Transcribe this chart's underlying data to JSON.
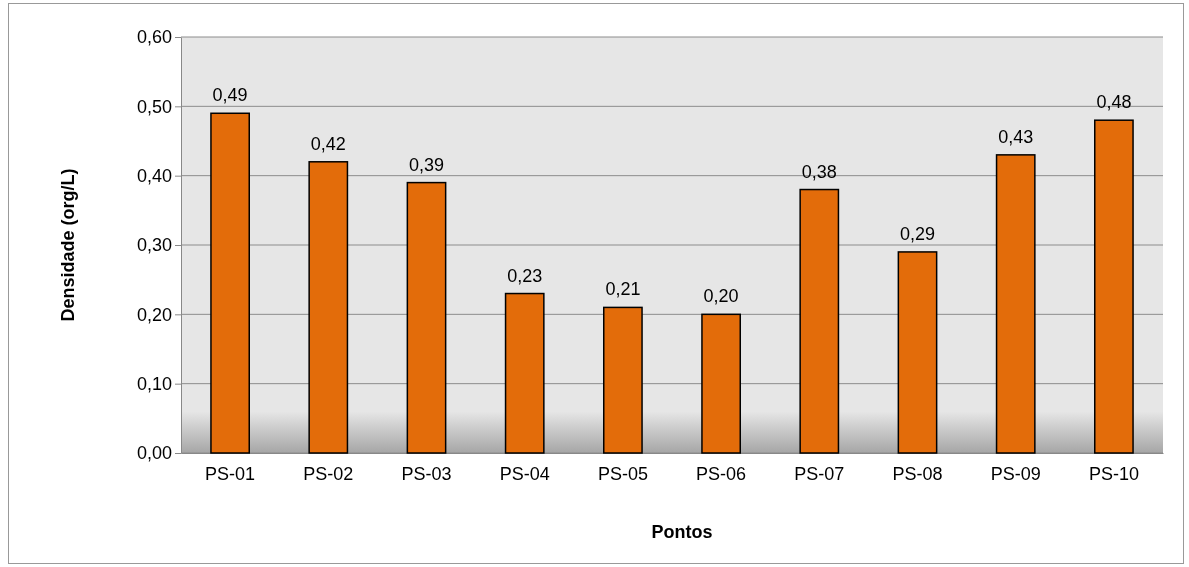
{
  "chart_data": {
    "type": "bar",
    "xlabel": "Pontos",
    "ylabel": "Densidade (org/L)",
    "categories": [
      "PS-01",
      "PS-02",
      "PS-03",
      "PS-04",
      "PS-05",
      "PS-06",
      "PS-07",
      "PS-08",
      "PS-09",
      "PS-10"
    ],
    "values": [
      0.49,
      0.42,
      0.39,
      0.23,
      0.21,
      0.2,
      0.38,
      0.29,
      0.43,
      0.48
    ],
    "value_labels": [
      "0,49",
      "0,42",
      "0,39",
      "0,23",
      "0,21",
      "0,20",
      "0,38",
      "0,29",
      "0,43",
      "0,48"
    ],
    "color": "#e36c0a",
    "grid": "y",
    "ylim": [
      0,
      0.6
    ],
    "yticks": [
      {
        "value": 0,
        "label": "0,00"
      },
      {
        "value": 0.1,
        "label": "0,10"
      },
      {
        "value": 0.2,
        "label": "0,20"
      },
      {
        "value": 0.3,
        "label": "0,30"
      },
      {
        "value": 0.4,
        "label": "0,40"
      },
      {
        "value": 0.5,
        "label": "0,50"
      },
      {
        "value": 0.6,
        "label": "0,60"
      }
    ]
  }
}
